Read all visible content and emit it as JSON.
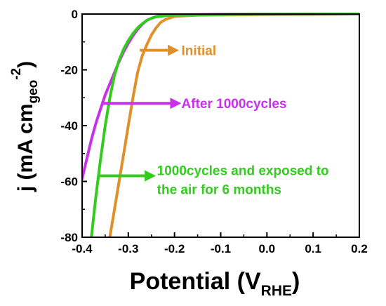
{
  "chart_data": {
    "type": "line",
    "title": "",
    "xlabel": {
      "main": "Potential (V",
      "sub": "RHE",
      "close": ")"
    },
    "ylabel": {
      "main": "j (mA cm",
      "sub": "geo",
      "sup": "-2",
      "close": ")"
    },
    "xlim": [
      -0.4,
      0.2
    ],
    "ylim": [
      -80,
      0
    ],
    "xticks": [
      -0.4,
      -0.3,
      -0.2,
      -0.1,
      0.0,
      0.1,
      0.2
    ],
    "xtick_labels": [
      "-0.4",
      "-0.3",
      "-0.2",
      "-0.1",
      "0.0",
      "0.1",
      "0.2"
    ],
    "yticks": [
      -80,
      -60,
      -40,
      -20,
      0
    ],
    "ytick_labels": [
      "-80",
      "-60",
      "-40",
      "-20",
      "0"
    ],
    "grid": false,
    "series": [
      {
        "label": "Initial",
        "color": "#e0902a",
        "points": [
          [
            -0.34,
            -80
          ],
          [
            -0.33,
            -70
          ],
          [
            -0.32,
            -60
          ],
          [
            -0.31,
            -50
          ],
          [
            -0.3,
            -40
          ],
          [
            -0.29,
            -30
          ],
          [
            -0.28,
            -21
          ],
          [
            -0.27,
            -15
          ],
          [
            -0.26,
            -11
          ],
          [
            -0.25,
            -7.5
          ],
          [
            -0.24,
            -5
          ],
          [
            -0.23,
            -3
          ],
          [
            -0.22,
            -2
          ],
          [
            -0.2,
            -0.8
          ],
          [
            -0.15,
            -0.4
          ],
          [
            -0.1,
            -0.3
          ],
          [
            0.0,
            -0.2
          ],
          [
            0.1,
            -0.1
          ],
          [
            0.2,
            0
          ]
        ]
      },
      {
        "label": "After 1000cycles",
        "color": "#c832e6",
        "points": [
          [
            -0.4,
            -59
          ],
          [
            -0.39,
            -52
          ],
          [
            -0.38,
            -45
          ],
          [
            -0.37,
            -39
          ],
          [
            -0.36,
            -34
          ],
          [
            -0.35,
            -29
          ],
          [
            -0.34,
            -25
          ],
          [
            -0.33,
            -21
          ],
          [
            -0.32,
            -17
          ],
          [
            -0.31,
            -13.5
          ],
          [
            -0.3,
            -10.5
          ],
          [
            -0.29,
            -7.8
          ],
          [
            -0.28,
            -5.5
          ],
          [
            -0.27,
            -3.7
          ],
          [
            -0.26,
            -2.3
          ],
          [
            -0.25,
            -1.5
          ],
          [
            -0.24,
            -0.9
          ],
          [
            -0.22,
            -0.5
          ],
          [
            -0.2,
            -0.3
          ],
          [
            -0.1,
            -0.1
          ],
          [
            0.0,
            -0.05
          ],
          [
            0.2,
            0
          ]
        ]
      },
      {
        "label": "1000cycles and exposed to the air for 6 months",
        "color": "#33cc1e",
        "points": [
          [
            -0.38,
            -80
          ],
          [
            -0.37,
            -65
          ],
          [
            -0.36,
            -52
          ],
          [
            -0.35,
            -40
          ],
          [
            -0.34,
            -30
          ],
          [
            -0.33,
            -22
          ],
          [
            -0.32,
            -16.5
          ],
          [
            -0.31,
            -12.5
          ],
          [
            -0.3,
            -9.5
          ],
          [
            -0.29,
            -7
          ],
          [
            -0.28,
            -5
          ],
          [
            -0.27,
            -3.5
          ],
          [
            -0.26,
            -2.3
          ],
          [
            -0.25,
            -1.5
          ],
          [
            -0.24,
            -1
          ],
          [
            -0.22,
            -0.6
          ],
          [
            -0.2,
            -0.4
          ],
          [
            -0.1,
            -0.2
          ],
          [
            0.0,
            -0.1
          ],
          [
            0.2,
            0
          ]
        ]
      }
    ],
    "annotations": [
      {
        "text_lines": [
          "Initial"
        ],
        "color": "#e0902a",
        "arrow_from": [
          -0.275,
          -13
        ],
        "arrow_to": [
          -0.2,
          -13
        ],
        "text_at": [
          -0.185,
          -13
        ]
      },
      {
        "text_lines": [
          "After 1000cycles"
        ],
        "color": "#c832e6",
        "arrow_from": [
          -0.355,
          -32
        ],
        "arrow_to": [
          -0.195,
          -32
        ],
        "text_at": [
          -0.185,
          -32
        ]
      },
      {
        "text_lines": [
          "1000cycles and exposed to",
          "the air for 6 months"
        ],
        "color": "#33cc1e",
        "arrow_from": [
          -0.365,
          -58
        ],
        "arrow_to": [
          -0.25,
          -58
        ],
        "text_at": [
          -0.238,
          -56
        ]
      }
    ]
  }
}
